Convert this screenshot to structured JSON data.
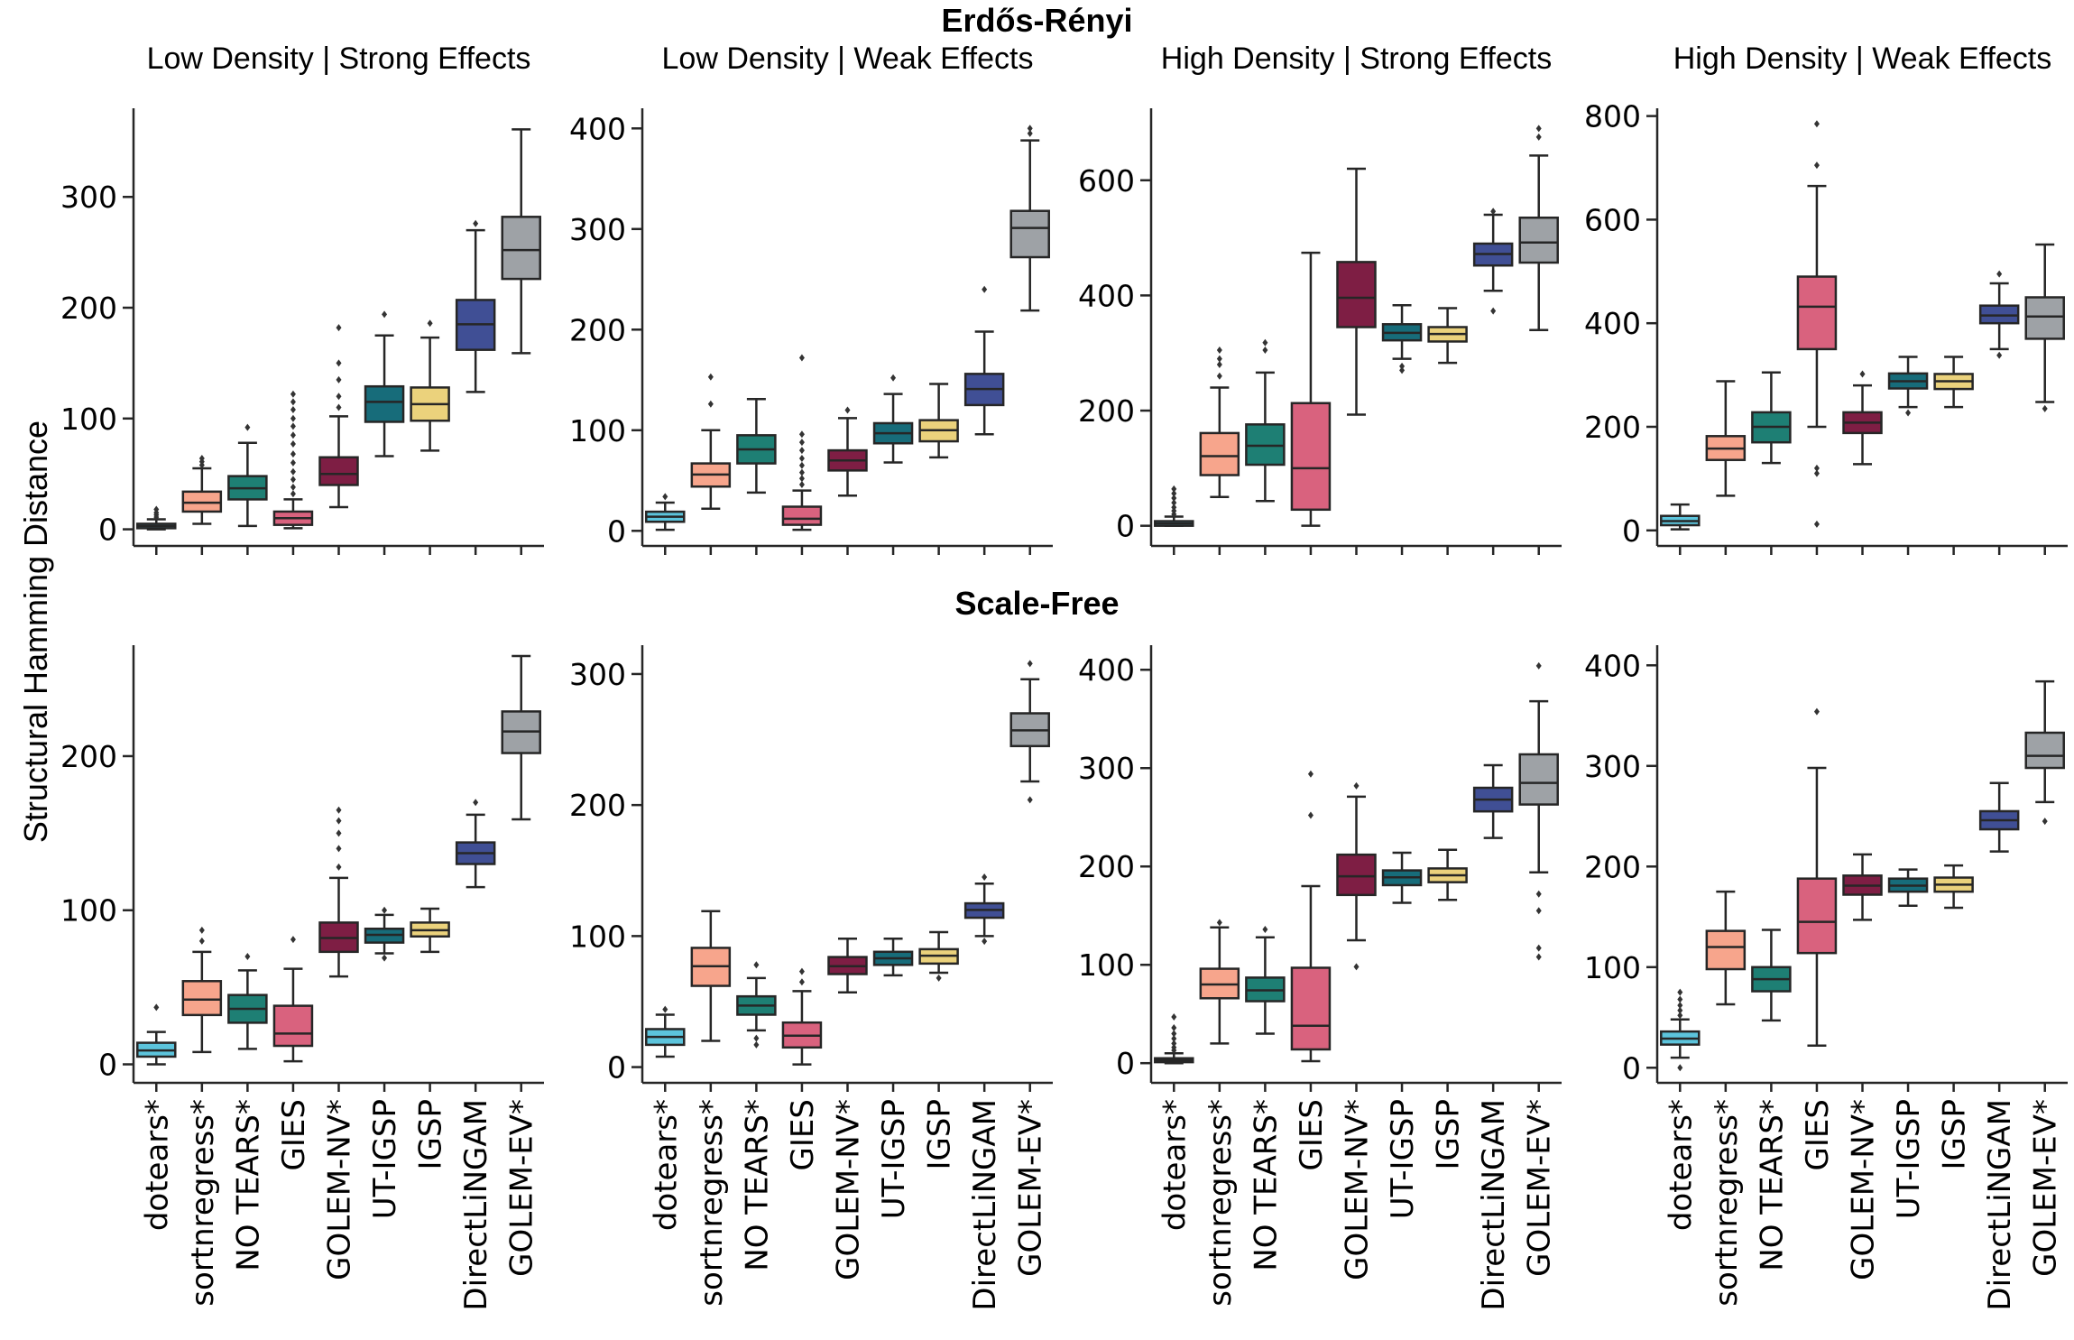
{
  "figure": {
    "group_titles": [
      "Erdős-Rényi",
      "Scale-Free"
    ],
    "ylabel": "Structural Hamming Distance",
    "methods": [
      "dotears*",
      "sortnregress*",
      "NO TEARS*",
      "GIES",
      "GOLEM-NV*",
      "UT-IGSP",
      "IGSP",
      "DirectLiNGAM",
      "GOLEM-EV*"
    ],
    "colors": [
      "#5cc4dc",
      "#f7a58c",
      "#1e7f74",
      "#d9627e",
      "#7e1e44",
      "#176c7a",
      "#ebd27c",
      "#404f95",
      "#9ea2a6"
    ],
    "median_color": "#262626"
  },
  "chart_data": [
    {
      "type": "box",
      "group": "Erdős-Rényi",
      "title": "Low Density | Strong Effects",
      "ylim": [
        -15,
        380
      ],
      "yticks": [
        0,
        100,
        200,
        300
      ],
      "boxes": [
        {
          "q1": 1,
          "med": 3,
          "q3": 5,
          "lo": 0,
          "hi": 9,
          "out": [
            11,
            13,
            15,
            18
          ]
        },
        {
          "q1": 16,
          "med": 24,
          "q3": 34,
          "lo": 5,
          "hi": 55,
          "out": [
            58,
            61,
            64
          ]
        },
        {
          "q1": 27,
          "med": 37,
          "q3": 48,
          "lo": 3,
          "hi": 78,
          "out": [
            92
          ]
        },
        {
          "q1": 4,
          "med": 10,
          "q3": 16,
          "lo": 1,
          "hi": 27,
          "out": [
            32,
            38,
            45,
            52,
            60,
            68,
            77,
            85,
            93,
            100,
            108,
            115,
            122
          ]
        },
        {
          "q1": 40,
          "med": 50,
          "q3": 65,
          "lo": 20,
          "hi": 102,
          "out": [
            110,
            120,
            135,
            150,
            182
          ]
        },
        {
          "q1": 97,
          "med": 115,
          "q3": 129,
          "lo": 66,
          "hi": 175,
          "out": [
            194
          ]
        },
        {
          "q1": 98,
          "med": 113,
          "q3": 128,
          "lo": 71,
          "hi": 173,
          "out": [
            186
          ]
        },
        {
          "q1": 162,
          "med": 185,
          "q3": 207,
          "lo": 124,
          "hi": 270,
          "out": [
            276
          ]
        },
        {
          "q1": 226,
          "med": 252,
          "q3": 282,
          "lo": 159,
          "hi": 361,
          "out": []
        }
      ]
    },
    {
      "type": "box",
      "group": "Erdős-Rényi",
      "title": "Low Density | Weak Effects",
      "ylim": [
        -15,
        420
      ],
      "yticks": [
        0,
        100,
        200,
        300,
        400
      ],
      "boxes": [
        {
          "q1": 9,
          "med": 14,
          "q3": 19,
          "lo": 1,
          "hi": 28,
          "out": [
            34
          ]
        },
        {
          "q1": 44,
          "med": 56,
          "q3": 67,
          "lo": 22,
          "hi": 100,
          "out": [
            126,
            153
          ]
        },
        {
          "q1": 67,
          "med": 81,
          "q3": 95,
          "lo": 38,
          "hi": 131,
          "out": []
        },
        {
          "q1": 6,
          "med": 12,
          "q3": 24,
          "lo": 1,
          "hi": 40,
          "out": [
            46,
            52,
            58,
            65,
            72,
            80,
            88,
            96,
            172
          ]
        },
        {
          "q1": 60,
          "med": 70,
          "q3": 80,
          "lo": 35,
          "hi": 112,
          "out": [
            120
          ]
        },
        {
          "q1": 87,
          "med": 97,
          "q3": 107,
          "lo": 68,
          "hi": 136,
          "out": [
            152
          ]
        },
        {
          "q1": 89,
          "med": 100,
          "q3": 110,
          "lo": 73,
          "hi": 146,
          "out": []
        },
        {
          "q1": 125,
          "med": 141,
          "q3": 156,
          "lo": 96,
          "hi": 198,
          "out": [
            240
          ]
        },
        {
          "q1": 272,
          "med": 301,
          "q3": 318,
          "lo": 219,
          "hi": 388,
          "out": [
            395,
            400
          ]
        }
      ]
    },
    {
      "type": "box",
      "group": "Erdős-Rényi",
      "title": "High Density | Strong Effects",
      "ylim": [
        -35,
        725
      ],
      "yticks": [
        0,
        200,
        400,
        600
      ],
      "boxes": [
        {
          "q1": 0,
          "med": 4,
          "q3": 8,
          "lo": 0,
          "hi": 16,
          "out": [
            20,
            26,
            32,
            40,
            48,
            56,
            64
          ]
        },
        {
          "q1": 88,
          "med": 121,
          "q3": 161,
          "lo": 50,
          "hi": 240,
          "out": [
            260,
            280,
            290,
            305
          ]
        },
        {
          "q1": 106,
          "med": 139,
          "q3": 176,
          "lo": 43,
          "hi": 266,
          "out": [
            305,
            318
          ]
        },
        {
          "q1": 28,
          "med": 100,
          "q3": 213,
          "lo": 0,
          "hi": 474,
          "out": []
        },
        {
          "q1": 345,
          "med": 396,
          "q3": 458,
          "lo": 193,
          "hi": 620,
          "out": []
        },
        {
          "q1": 322,
          "med": 335,
          "q3": 350,
          "lo": 290,
          "hi": 383,
          "out": [
            270,
            277
          ]
        },
        {
          "q1": 320,
          "med": 333,
          "q3": 345,
          "lo": 283,
          "hi": 378,
          "out": []
        },
        {
          "q1": 452,
          "med": 472,
          "q3": 490,
          "lo": 408,
          "hi": 540,
          "out": [
            373,
            546
          ]
        },
        {
          "q1": 457,
          "med": 492,
          "q3": 535,
          "lo": 340,
          "hi": 643,
          "out": [
            675,
            690
          ]
        }
      ]
    },
    {
      "type": "box",
      "group": "Erdős-Rényi",
      "title": "High Density | Weak Effects",
      "ylim": [
        -30,
        815
      ],
      "yticks": [
        0,
        200,
        400,
        600,
        800
      ],
      "boxes": [
        {
          "q1": 10,
          "med": 18,
          "q3": 28,
          "lo": 2,
          "hi": 50,
          "out": []
        },
        {
          "q1": 136,
          "med": 158,
          "q3": 182,
          "lo": 67,
          "hi": 288,
          "out": []
        },
        {
          "q1": 170,
          "med": 200,
          "q3": 228,
          "lo": 130,
          "hi": 305,
          "out": []
        },
        {
          "q1": 350,
          "med": 432,
          "q3": 490,
          "lo": 200,
          "hi": 665,
          "out": [
            12,
            110,
            120,
            705,
            785
          ]
        },
        {
          "q1": 188,
          "med": 208,
          "q3": 228,
          "lo": 128,
          "hi": 280,
          "out": [
            302
          ]
        },
        {
          "q1": 274,
          "med": 288,
          "q3": 303,
          "lo": 238,
          "hi": 335,
          "out": [
            227
          ]
        },
        {
          "q1": 273,
          "med": 288,
          "q3": 302,
          "lo": 238,
          "hi": 335,
          "out": []
        },
        {
          "q1": 400,
          "med": 415,
          "q3": 434,
          "lo": 350,
          "hi": 477,
          "out": [
            338,
            495
          ]
        },
        {
          "q1": 370,
          "med": 413,
          "q3": 450,
          "lo": 248,
          "hi": 552,
          "out": [
            235
          ]
        }
      ]
    },
    {
      "type": "box",
      "group": "Scale-Free",
      "title": "",
      "ylim": [
        -12,
        272
      ],
      "yticks": [
        0,
        100,
        200
      ],
      "boxes": [
        {
          "q1": 5,
          "med": 9,
          "q3": 14,
          "lo": 0,
          "hi": 21,
          "out": [
            37
          ]
        },
        {
          "q1": 32,
          "med": 42,
          "q3": 54,
          "lo": 8,
          "hi": 73,
          "out": [
            80,
            87
          ]
        },
        {
          "q1": 27,
          "med": 36,
          "q3": 45,
          "lo": 10,
          "hi": 61,
          "out": [
            70
          ]
        },
        {
          "q1": 12,
          "med": 20,
          "q3": 38,
          "lo": 2,
          "hi": 62,
          "out": [
            81
          ]
        },
        {
          "q1": 73,
          "med": 82,
          "q3": 92,
          "lo": 57,
          "hi": 121,
          "out": [
            128,
            140,
            150,
            158,
            165
          ]
        },
        {
          "q1": 79,
          "med": 84,
          "q3": 88,
          "lo": 72,
          "hi": 97,
          "out": [
            69,
            100
          ]
        },
        {
          "q1": 83,
          "med": 87,
          "q3": 92,
          "lo": 73,
          "hi": 101,
          "out": []
        },
        {
          "q1": 130,
          "med": 137,
          "q3": 144,
          "lo": 115,
          "hi": 162,
          "out": [
            170
          ]
        },
        {
          "q1": 202,
          "med": 216,
          "q3": 229,
          "lo": 159,
          "hi": 265,
          "out": []
        }
      ]
    },
    {
      "type": "box",
      "group": "Scale-Free",
      "title": "",
      "ylim": [
        -12,
        322
      ],
      "yticks": [
        0,
        100,
        200,
        300
      ],
      "boxes": [
        {
          "q1": 17,
          "med": 23,
          "q3": 29,
          "lo": 8,
          "hi": 40,
          "out": [
            44
          ]
        },
        {
          "q1": 62,
          "med": 77,
          "q3": 91,
          "lo": 20,
          "hi": 119,
          "out": []
        },
        {
          "q1": 40,
          "med": 47,
          "q3": 54,
          "lo": 28,
          "hi": 68,
          "out": [
            17,
            22,
            78
          ]
        },
        {
          "q1": 15,
          "med": 24,
          "q3": 34,
          "lo": 2,
          "hi": 58,
          "out": [
            65,
            73
          ]
        },
        {
          "q1": 71,
          "med": 77,
          "q3": 84,
          "lo": 57,
          "hi": 98,
          "out": []
        },
        {
          "q1": 78,
          "med": 83,
          "q3": 88,
          "lo": 70,
          "hi": 98,
          "out": []
        },
        {
          "q1": 79,
          "med": 85,
          "q3": 90,
          "lo": 72,
          "hi": 103,
          "out": [
            68
          ]
        },
        {
          "q1": 114,
          "med": 120,
          "q3": 125,
          "lo": 100,
          "hi": 140,
          "out": [
            96,
            145
          ]
        },
        {
          "q1": 245,
          "med": 257,
          "q3": 270,
          "lo": 218,
          "hi": 296,
          "out": [
            204,
            308
          ]
        }
      ]
    },
    {
      "type": "box",
      "group": "Scale-Free",
      "title": "",
      "ylim": [
        -20,
        425
      ],
      "yticks": [
        0,
        100,
        200,
        300,
        400
      ],
      "boxes": [
        {
          "q1": 1,
          "med": 3,
          "q3": 5,
          "lo": 0,
          "hi": 10,
          "out": [
            13,
            16,
            20,
            25,
            30,
            36,
            47
          ]
        },
        {
          "q1": 66,
          "med": 80,
          "q3": 96,
          "lo": 20,
          "hi": 138,
          "out": [
            143
          ]
        },
        {
          "q1": 63,
          "med": 74,
          "q3": 87,
          "lo": 30,
          "hi": 128,
          "out": [
            136
          ]
        },
        {
          "q1": 14,
          "med": 38,
          "q3": 97,
          "lo": 2,
          "hi": 180,
          "out": [
            252,
            294
          ]
        },
        {
          "q1": 171,
          "med": 190,
          "q3": 212,
          "lo": 125,
          "hi": 271,
          "out": [
            98,
            282
          ]
        },
        {
          "q1": 181,
          "med": 189,
          "q3": 196,
          "lo": 163,
          "hi": 214,
          "out": []
        },
        {
          "q1": 184,
          "med": 191,
          "q3": 198,
          "lo": 166,
          "hi": 217,
          "out": []
        },
        {
          "q1": 256,
          "med": 268,
          "q3": 280,
          "lo": 229,
          "hi": 303,
          "out": []
        },
        {
          "q1": 263,
          "med": 285,
          "q3": 314,
          "lo": 194,
          "hi": 368,
          "out": [
            108,
            117,
            155,
            172,
            404
          ]
        }
      ]
    },
    {
      "type": "box",
      "group": "Scale-Free",
      "title": "",
      "ylim": [
        -15,
        420
      ],
      "yticks": [
        0,
        100,
        200,
        300,
        400
      ],
      "boxes": [
        {
          "q1": 23,
          "med": 29,
          "q3": 36,
          "lo": 10,
          "hi": 48,
          "out": [
            0,
            52,
            57,
            62,
            68,
            75
          ]
        },
        {
          "q1": 98,
          "med": 120,
          "q3": 136,
          "lo": 63,
          "hi": 175,
          "out": []
        },
        {
          "q1": 76,
          "med": 88,
          "q3": 100,
          "lo": 47,
          "hi": 137,
          "out": []
        },
        {
          "q1": 114,
          "med": 145,
          "q3": 188,
          "lo": 22,
          "hi": 298,
          "out": [
            354
          ]
        },
        {
          "q1": 172,
          "med": 181,
          "q3": 191,
          "lo": 147,
          "hi": 212,
          "out": []
        },
        {
          "q1": 175,
          "med": 181,
          "q3": 188,
          "lo": 161,
          "hi": 197,
          "out": []
        },
        {
          "q1": 175,
          "med": 182,
          "q3": 189,
          "lo": 159,
          "hi": 201,
          "out": []
        },
        {
          "q1": 237,
          "med": 246,
          "q3": 255,
          "lo": 215,
          "hi": 283,
          "out": []
        },
        {
          "q1": 298,
          "med": 310,
          "q3": 333,
          "lo": 264,
          "hi": 384,
          "out": [
            245
          ]
        }
      ]
    }
  ]
}
